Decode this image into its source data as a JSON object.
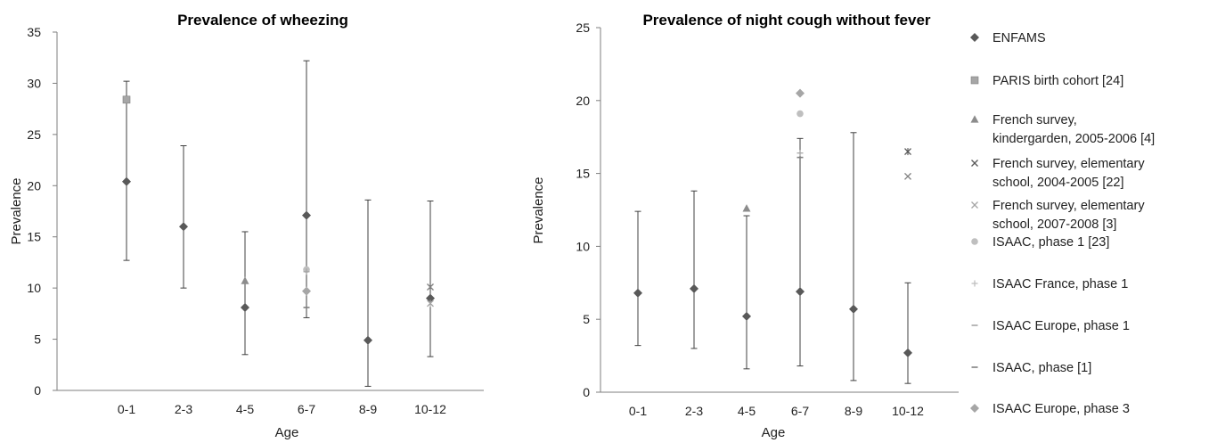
{
  "colors": {
    "enfams": "#595959",
    "cohort_gray": "#a6a6a6",
    "ref_dark": "#808080",
    "axis": "#7f7f7f",
    "errorbar": "#404040"
  },
  "chart_data": [
    {
      "type": "scatter",
      "title": "Prevalence of wheezing",
      "xlabel": "Age",
      "ylabel": "Prevalence",
      "ylim": [
        0,
        35
      ],
      "yticks": [
        0,
        5,
        10,
        15,
        20,
        25,
        30,
        35
      ],
      "categories": [
        "0-1",
        "2-3",
        "4-5",
        "6-7",
        "8-9",
        "10-12"
      ],
      "grid": false,
      "series": [
        {
          "name": "ENFAMS",
          "marker": "diamond",
          "color": "#595959",
          "points": [
            {
              "x": "0-1",
              "y": 20.4,
              "err": [
                12.7,
                30.2
              ]
            },
            {
              "x": "2-3",
              "y": 16.0,
              "err": [
                10.0,
                23.9
              ]
            },
            {
              "x": "4-5",
              "y": 8.1,
              "err": [
                3.5,
                15.5
              ]
            },
            {
              "x": "6-7",
              "y": 17.1,
              "err": [
                7.1,
                32.2
              ]
            },
            {
              "x": "8-9",
              "y": 4.9,
              "err": [
                0.4,
                18.6
              ]
            },
            {
              "x": "10-12",
              "y": 9.0,
              "err": [
                3.3,
                18.5
              ]
            }
          ]
        },
        {
          "name": "PARIS birth cohort [24]",
          "marker": "square",
          "color": "#a6a6a6",
          "points": [
            {
              "x": "0-1",
              "y": 28.4
            }
          ]
        },
        {
          "name": "French survey, kindergarden, 2005-2006 [4]",
          "marker": "triangle",
          "color": "#8c8c8c",
          "points": [
            {
              "x": "4-5",
              "y": 10.7
            }
          ]
        },
        {
          "name": "French survey, elementary school, 2004-2005 [22]",
          "marker": "x",
          "color": "#808080",
          "points": [
            {
              "x": "10-12",
              "y": 10.1
            }
          ]
        },
        {
          "name": "French survey, elementary school, 2007-2008 [3]",
          "marker": "star",
          "color": "#a6a6a6",
          "points": [
            {
              "x": "10-12",
              "y": 8.5
            }
          ]
        },
        {
          "name": "ISAAC, phase 1 [23]",
          "marker": "circle",
          "color": "#bfbfbf",
          "points": [
            {
              "x": "6-7",
              "y": 11.8
            }
          ]
        },
        {
          "name": "ISAAC France, phase 1",
          "marker": "plus",
          "color": "#a6a6a6",
          "points": [
            {
              "x": "6-7",
              "y": 11.6
            }
          ]
        },
        {
          "name": "ISAAC Europe, phase 1",
          "marker": "dash",
          "color": "#808080",
          "points": [
            {
              "x": "6-7",
              "y": 8.1
            }
          ]
        },
        {
          "name": "ISAAC, phase  [1]",
          "marker": "dash",
          "color": "#595959",
          "points": []
        },
        {
          "name": "ISAAC Europe, phase 3",
          "marker": "diamond",
          "color": "#a6a6a6",
          "points": [
            {
              "x": "6-7",
              "y": 9.7
            }
          ]
        }
      ]
    },
    {
      "type": "scatter",
      "title": "Prevalence of night cough without fever",
      "xlabel": "Age",
      "ylabel": "Prevalence",
      "ylim": [
        0,
        25
      ],
      "yticks": [
        0,
        5,
        10,
        15,
        20,
        25
      ],
      "categories": [
        "0-1",
        "2-3",
        "4-5",
        "6-7",
        "8-9",
        "10-12"
      ],
      "grid": false,
      "legend": "right",
      "series": [
        {
          "name": "ENFAMS",
          "marker": "diamond",
          "color": "#595959",
          "points": [
            {
              "x": "0-1",
              "y": 6.8,
              "err": [
                3.2,
                12.4
              ]
            },
            {
              "x": "2-3",
              "y": 7.1,
              "err": [
                3.0,
                13.8
              ]
            },
            {
              "x": "4-5",
              "y": 5.2,
              "err": [
                1.6,
                12.1
              ]
            },
            {
              "x": "6-7",
              "y": 6.9,
              "err": [
                1.8,
                17.4
              ]
            },
            {
              "x": "8-9",
              "y": 5.7,
              "err": [
                0.8,
                17.8
              ]
            },
            {
              "x": "10-12",
              "y": 2.7,
              "err": [
                0.6,
                7.5
              ]
            }
          ]
        },
        {
          "name": "PARIS birth cohort [24]",
          "marker": "square",
          "color": "#a6a6a6",
          "points": []
        },
        {
          "name": "French survey, kindergarden, 2005-2006 [4]",
          "marker": "triangle",
          "color": "#8c8c8c",
          "points": [
            {
              "x": "4-5",
              "y": 12.6
            }
          ]
        },
        {
          "name": "French survey, elementary school, 2004-2005 [22]",
          "marker": "x",
          "color": "#808080",
          "points": [
            {
              "x": "10-12",
              "y": 14.8
            }
          ]
        },
        {
          "name": "French survey, elementary school, 2007-2008 [3]",
          "marker": "star",
          "color": "#595959",
          "points": [
            {
              "x": "10-12",
              "y": 16.5
            }
          ]
        },
        {
          "name": "ISAAC, phase 1 [23]",
          "marker": "circle",
          "color": "#bfbfbf",
          "points": [
            {
              "x": "6-7",
              "y": 19.1
            }
          ]
        },
        {
          "name": "ISAAC France, phase 1",
          "marker": "plus",
          "color": "#a6a6a6",
          "points": [
            {
              "x": "6-7",
              "y": 16.4
            }
          ]
        },
        {
          "name": "ISAAC Europe, phase 1",
          "marker": "dash",
          "color": "#808080",
          "points": [
            {
              "x": "6-7",
              "y": 16.1
            }
          ]
        },
        {
          "name": "ISAAC, phase  [1]",
          "marker": "dash",
          "color": "#595959",
          "points": []
        },
        {
          "name": "ISAAC Europe, phase 3",
          "marker": "diamond",
          "color": "#a6a6a6",
          "points": [
            {
              "x": "6-7",
              "y": 20.5
            }
          ]
        }
      ]
    }
  ],
  "legend": {
    "items": [
      {
        "lines": [
          "ENFAMS"
        ],
        "marker": "diamond",
        "color": "#595959"
      },
      {
        "lines": [
          "PARIS birth cohort [24]"
        ],
        "marker": "square",
        "color": "#a6a6a6"
      },
      {
        "lines": [
          "French survey,",
          "kindergarden, 2005-2006 [4]"
        ],
        "marker": "triangle",
        "color": "#8c8c8c"
      },
      {
        "lines": [
          "French survey, elementary",
          "school, 2004-2005 [22]"
        ],
        "marker": "x",
        "color": "#595959"
      },
      {
        "lines": [
          "French survey, elementary",
          "school, 2007-2008 [3]"
        ],
        "marker": "x",
        "color": "#a6a6a6"
      },
      {
        "lines": [
          "ISAAC, phase 1 [23]"
        ],
        "marker": "circle",
        "color": "#bfbfbf"
      },
      {
        "lines": [
          "ISAAC France, phase 1"
        ],
        "marker": "plus",
        "color": "#bfbfbf"
      },
      {
        "lines": [
          "ISAAC Europe, phase 1"
        ],
        "marker": "dash",
        "color": "#a6a6a6"
      },
      {
        "lines": [
          "ISAAC, phase  [1]"
        ],
        "marker": "dash",
        "color": "#808080"
      },
      {
        "lines": [
          "ISAAC Europe, phase 3"
        ],
        "marker": "diamond",
        "color": "#a6a6a6"
      }
    ]
  }
}
